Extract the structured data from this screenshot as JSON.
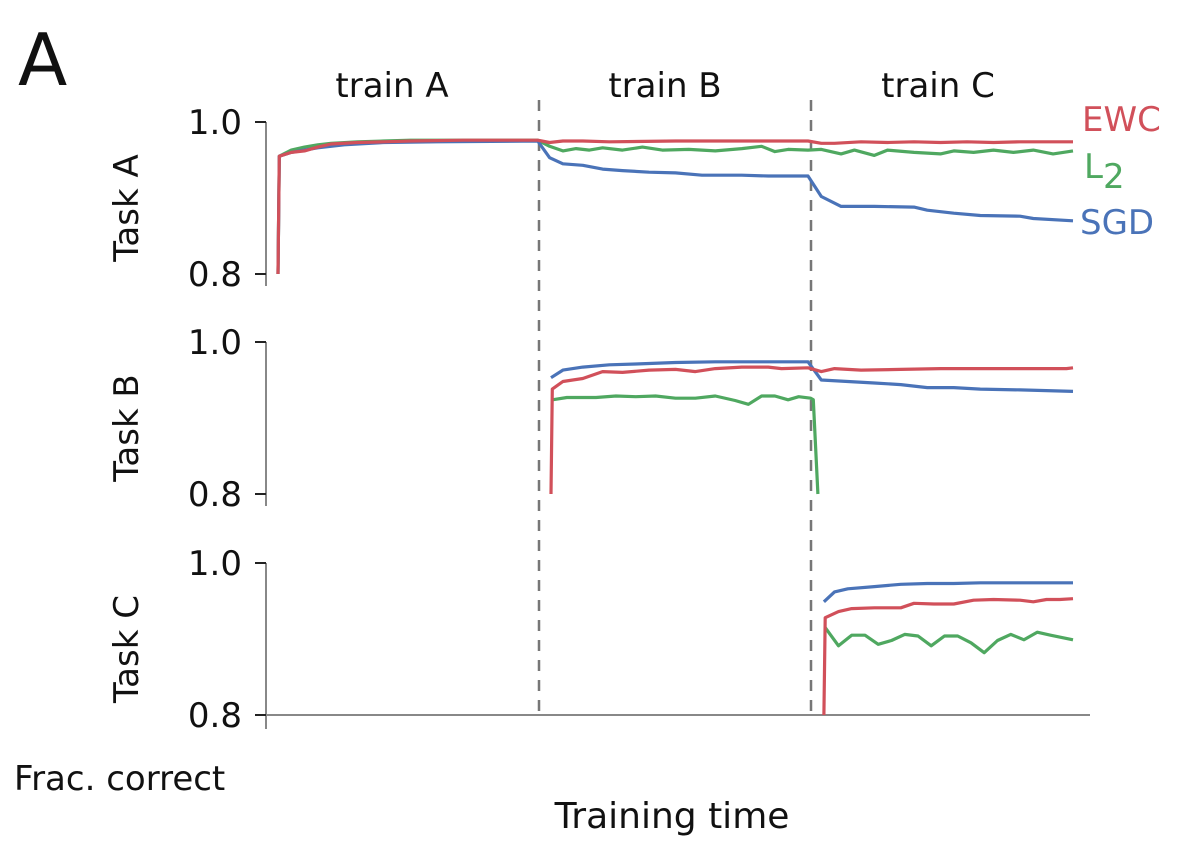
{
  "panel_label": "A",
  "phase_labels": [
    "train A",
    "train B",
    "train C"
  ],
  "y_axis_label": "Frac. correct",
  "x_axis_label": "Training time",
  "legend": {
    "ewc": "EWC",
    "l2_base": "L",
    "l2_sub": "2",
    "sgd": "SGD"
  },
  "colors": {
    "EWC": "#d1505a",
    "L2": "#4fa860",
    "SGD": "#4a73b8",
    "axis": "#888888",
    "divider": "#777777"
  },
  "chart_data": [
    {
      "type": "line",
      "ylabel": "Task A",
      "ylim": [
        0.8,
        1.0
      ],
      "yticks": [
        "1.0",
        "0.8"
      ],
      "phase_boundaries": [
        20,
        40
      ],
      "series": [
        {
          "name": "EWC",
          "points": [
            [
              0,
              0.8
            ],
            [
              0.1,
              0.955
            ],
            [
              1,
              0.96
            ],
            [
              2,
              0.962
            ],
            [
              3,
              0.967
            ],
            [
              4,
              0.971
            ],
            [
              6,
              0.973
            ],
            [
              8,
              0.974
            ],
            [
              10,
              0.975
            ],
            [
              14,
              0.976
            ],
            [
              19.6,
              0.976
            ],
            [
              20.5,
              0.973
            ],
            [
              21.5,
              0.975
            ],
            [
              23,
              0.975
            ],
            [
              25,
              0.974
            ],
            [
              30,
              0.975
            ],
            [
              35,
              0.975
            ],
            [
              40,
              0.975
            ],
            [
              41,
              0.972
            ],
            [
              42,
              0.972
            ],
            [
              44,
              0.974
            ],
            [
              46,
              0.973
            ],
            [
              48,
              0.974
            ],
            [
              50,
              0.973
            ],
            [
              52,
              0.974
            ],
            [
              54,
              0.973
            ],
            [
              56,
              0.974
            ],
            [
              58,
              0.974
            ],
            [
              60,
              0.974
            ]
          ]
        },
        {
          "name": "L2",
          "points": [
            [
              0,
              0.8
            ],
            [
              0.1,
              0.955
            ],
            [
              1,
              0.963
            ],
            [
              2,
              0.967
            ],
            [
              3,
              0.97
            ],
            [
              4,
              0.972
            ],
            [
              6,
              0.974
            ],
            [
              8,
              0.975
            ],
            [
              10,
              0.976
            ],
            [
              14,
              0.976
            ],
            [
              19.6,
              0.976
            ],
            [
              20.5,
              0.968
            ],
            [
              21.5,
              0.962
            ],
            [
              22.5,
              0.965
            ],
            [
              23.5,
              0.963
            ],
            [
              24.5,
              0.966
            ],
            [
              26,
              0.963
            ],
            [
              27.5,
              0.967
            ],
            [
              29,
              0.963
            ],
            [
              31,
              0.964
            ],
            [
              33,
              0.962
            ],
            [
              35,
              0.965
            ],
            [
              36.5,
              0.968
            ],
            [
              37.5,
              0.961
            ],
            [
              38.5,
              0.964
            ],
            [
              40,
              0.963
            ],
            [
              41,
              0.964
            ],
            [
              42.5,
              0.958
            ],
            [
              43.5,
              0.963
            ],
            [
              45,
              0.956
            ],
            [
              46,
              0.963
            ],
            [
              48,
              0.96
            ],
            [
              50,
              0.958
            ],
            [
              51,
              0.962
            ],
            [
              52.5,
              0.96
            ],
            [
              54,
              0.963
            ],
            [
              55.5,
              0.96
            ],
            [
              57,
              0.963
            ],
            [
              58.5,
              0.958
            ],
            [
              60,
              0.962
            ]
          ]
        },
        {
          "name": "SGD",
          "points": [
            [
              0,
              0.8
            ],
            [
              0.1,
              0.955
            ],
            [
              1,
              0.96
            ],
            [
              2,
              0.963
            ],
            [
              3,
              0.966
            ],
            [
              5,
              0.97
            ],
            [
              8,
              0.973
            ],
            [
              12,
              0.974
            ],
            [
              19.6,
              0.975
            ],
            [
              20.5,
              0.953
            ],
            [
              21.5,
              0.945
            ],
            [
              23,
              0.943
            ],
            [
              24.5,
              0.938
            ],
            [
              26,
              0.936
            ],
            [
              28,
              0.934
            ],
            [
              30,
              0.933
            ],
            [
              32,
              0.93
            ],
            [
              35,
              0.93
            ],
            [
              37,
              0.929
            ],
            [
              40,
              0.929
            ],
            [
              41,
              0.902
            ],
            [
              42.5,
              0.889
            ],
            [
              45,
              0.889
            ],
            [
              48,
              0.888
            ],
            [
              49,
              0.884
            ],
            [
              51,
              0.88
            ],
            [
              53,
              0.877
            ],
            [
              56,
              0.876
            ],
            [
              57,
              0.873
            ],
            [
              60,
              0.87
            ]
          ]
        }
      ]
    },
    {
      "type": "line",
      "ylabel": "Task B",
      "ylim": [
        0.8,
        1.0
      ],
      "yticks": [
        "1.0",
        "0.8"
      ],
      "phase_boundaries": [
        20,
        40
      ],
      "series": [
        {
          "name": "EWC",
          "points": [
            [
              20.6,
              0.8
            ],
            [
              20.7,
              0.938
            ],
            [
              21.5,
              0.948
            ],
            [
              23,
              0.952
            ],
            [
              24.5,
              0.961
            ],
            [
              26,
              0.96
            ],
            [
              28,
              0.963
            ],
            [
              30,
              0.964
            ],
            [
              31.5,
              0.961
            ],
            [
              33,
              0.965
            ],
            [
              35,
              0.967
            ],
            [
              37,
              0.967
            ],
            [
              38,
              0.965
            ],
            [
              40,
              0.966
            ],
            [
              41,
              0.961
            ],
            [
              42,
              0.965
            ],
            [
              44,
              0.963
            ],
            [
              47,
              0.964
            ],
            [
              50,
              0.965
            ],
            [
              53,
              0.965
            ],
            [
              56,
              0.965
            ],
            [
              59.5,
              0.965
            ],
            [
              60,
              0.966
            ]
          ]
        },
        {
          "name": "L2",
          "points": [
            [
              20.7,
              0.924
            ],
            [
              21.8,
              0.927
            ],
            [
              24,
              0.927
            ],
            [
              25.5,
              0.929
            ],
            [
              27,
              0.928
            ],
            [
              28.5,
              0.929
            ],
            [
              30,
              0.926
            ],
            [
              31.5,
              0.926
            ],
            [
              33,
              0.929
            ],
            [
              34.5,
              0.923
            ],
            [
              35.5,
              0.918
            ],
            [
              36.5,
              0.929
            ],
            [
              37.5,
              0.929
            ],
            [
              38.5,
              0.924
            ],
            [
              39.3,
              0.928
            ],
            [
              40.2,
              0.926
            ],
            [
              40.4,
              0.924
            ],
            [
              40.75,
              0.8
            ]
          ]
        },
        {
          "name": "SGD",
          "points": [
            [
              20.6,
              0.953
            ],
            [
              21.5,
              0.963
            ],
            [
              23,
              0.967
            ],
            [
              25,
              0.97
            ],
            [
              27,
              0.971
            ],
            [
              30,
              0.973
            ],
            [
              33,
              0.974
            ],
            [
              36,
              0.974
            ],
            [
              40,
              0.974
            ],
            [
              41,
              0.95
            ],
            [
              43,
              0.948
            ],
            [
              45,
              0.946
            ],
            [
              47,
              0.944
            ],
            [
              49,
              0.94
            ],
            [
              51,
              0.94
            ],
            [
              53,
              0.938
            ],
            [
              56,
              0.937
            ],
            [
              60,
              0.935
            ]
          ]
        }
      ]
    },
    {
      "type": "line",
      "ylabel": "Task C",
      "ylim": [
        0.8,
        1.0
      ],
      "yticks": [
        "1.0",
        "0.8"
      ],
      "phase_boundaries": [
        20,
        40
      ],
      "series": [
        {
          "name": "EWC",
          "points": [
            [
              41.2,
              0.8
            ],
            [
              41.3,
              0.928
            ],
            [
              42.3,
              0.936
            ],
            [
              43.3,
              0.94
            ],
            [
              45,
              0.941
            ],
            [
              47,
              0.941
            ],
            [
              48,
              0.947
            ],
            [
              49.5,
              0.946
            ],
            [
              51,
              0.946
            ],
            [
              52.5,
              0.951
            ],
            [
              54,
              0.952
            ],
            [
              56,
              0.951
            ],
            [
              57,
              0.949
            ],
            [
              58,
              0.952
            ],
            [
              59,
              0.952
            ],
            [
              60,
              0.953
            ]
          ]
        },
        {
          "name": "L2",
          "points": [
            [
              41.3,
              0.915
            ],
            [
              42.3,
              0.891
            ],
            [
              43.3,
              0.905
            ],
            [
              44.3,
              0.905
            ],
            [
              45.3,
              0.893
            ],
            [
              46.3,
              0.898
            ],
            [
              47.3,
              0.906
            ],
            [
              48.3,
              0.904
            ],
            [
              49.3,
              0.891
            ],
            [
              50.3,
              0.904
            ],
            [
              51.3,
              0.904
            ],
            [
              52.3,
              0.895
            ],
            [
              53.3,
              0.882
            ],
            [
              54.3,
              0.898
            ],
            [
              55.3,
              0.906
            ],
            [
              56.3,
              0.899
            ],
            [
              57.3,
              0.909
            ],
            [
              58.3,
              0.905
            ],
            [
              60,
              0.899
            ]
          ]
        },
        {
          "name": "SGD",
          "points": [
            [
              41.2,
              0.949
            ],
            [
              42,
              0.962
            ],
            [
              43,
              0.966
            ],
            [
              45,
              0.969
            ],
            [
              47,
              0.972
            ],
            [
              49,
              0.973
            ],
            [
              51,
              0.973
            ],
            [
              53,
              0.974
            ],
            [
              56,
              0.974
            ],
            [
              60,
              0.974
            ]
          ]
        }
      ]
    }
  ]
}
